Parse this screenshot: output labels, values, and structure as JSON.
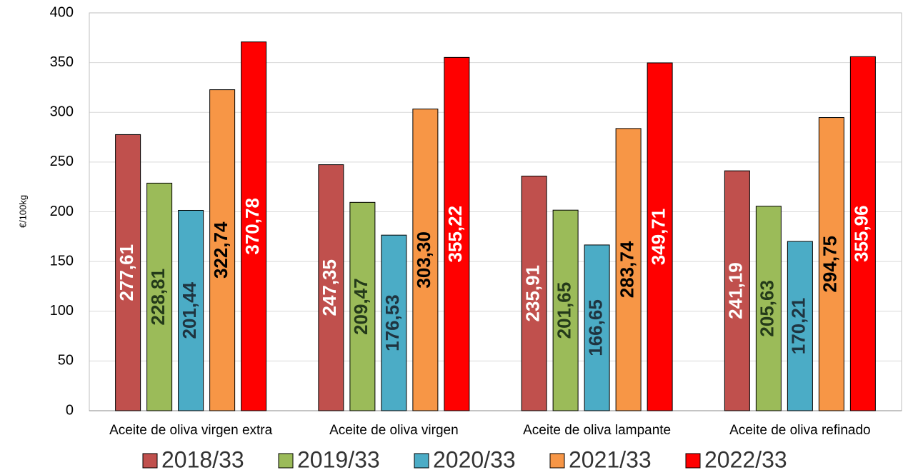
{
  "chart_data": {
    "type": "bar",
    "y_label": "€/100kg",
    "categories": [
      "Aceite de oliva virgen extra",
      "Aceite de oliva virgen",
      "Aceite de oliva lampante",
      "Aceite de oliva refinado"
    ],
    "series": [
      {
        "name": "2018/33",
        "color": "#c0504d",
        "label_color": "#ffffff",
        "values": [
          277.61,
          247.35,
          235.91,
          241.19
        ],
        "value_labels": [
          "277,61",
          "247,35",
          "235,91",
          "241,19"
        ]
      },
      {
        "name": "2019/33",
        "color": "#9bbb59",
        "label_color": "#243a1a",
        "values": [
          228.81,
          209.47,
          201.65,
          205.63
        ],
        "value_labels": [
          "228,81",
          "209,47",
          "201,65",
          "205,63"
        ]
      },
      {
        "name": "2020/33",
        "color": "#4bacc6",
        "label_color": "#1f3440",
        "values": [
          201.44,
          176.53,
          166.65,
          170.21
        ],
        "value_labels": [
          "201,44",
          "176,53",
          "166,65",
          "170,21"
        ]
      },
      {
        "name": "2021/33",
        "color": "#f79646",
        "label_color": "#000000",
        "values": [
          322.74,
          303.3,
          283.74,
          294.75
        ],
        "value_labels": [
          "322,74",
          "303,30",
          "283,74",
          "294,75"
        ]
      },
      {
        "name": "2022/33",
        "color": "#ff0000",
        "label_color": "#ffffff",
        "values": [
          370.78,
          355.22,
          349.71,
          355.96
        ],
        "value_labels": [
          "370,78",
          "355,22",
          "349,71",
          "355,96"
        ]
      }
    ],
    "ylim": [
      0,
      400
    ],
    "yticks": [
      0,
      50,
      100,
      150,
      200,
      250,
      300,
      350,
      400
    ],
    "grid": true,
    "legend": "bottom"
  }
}
